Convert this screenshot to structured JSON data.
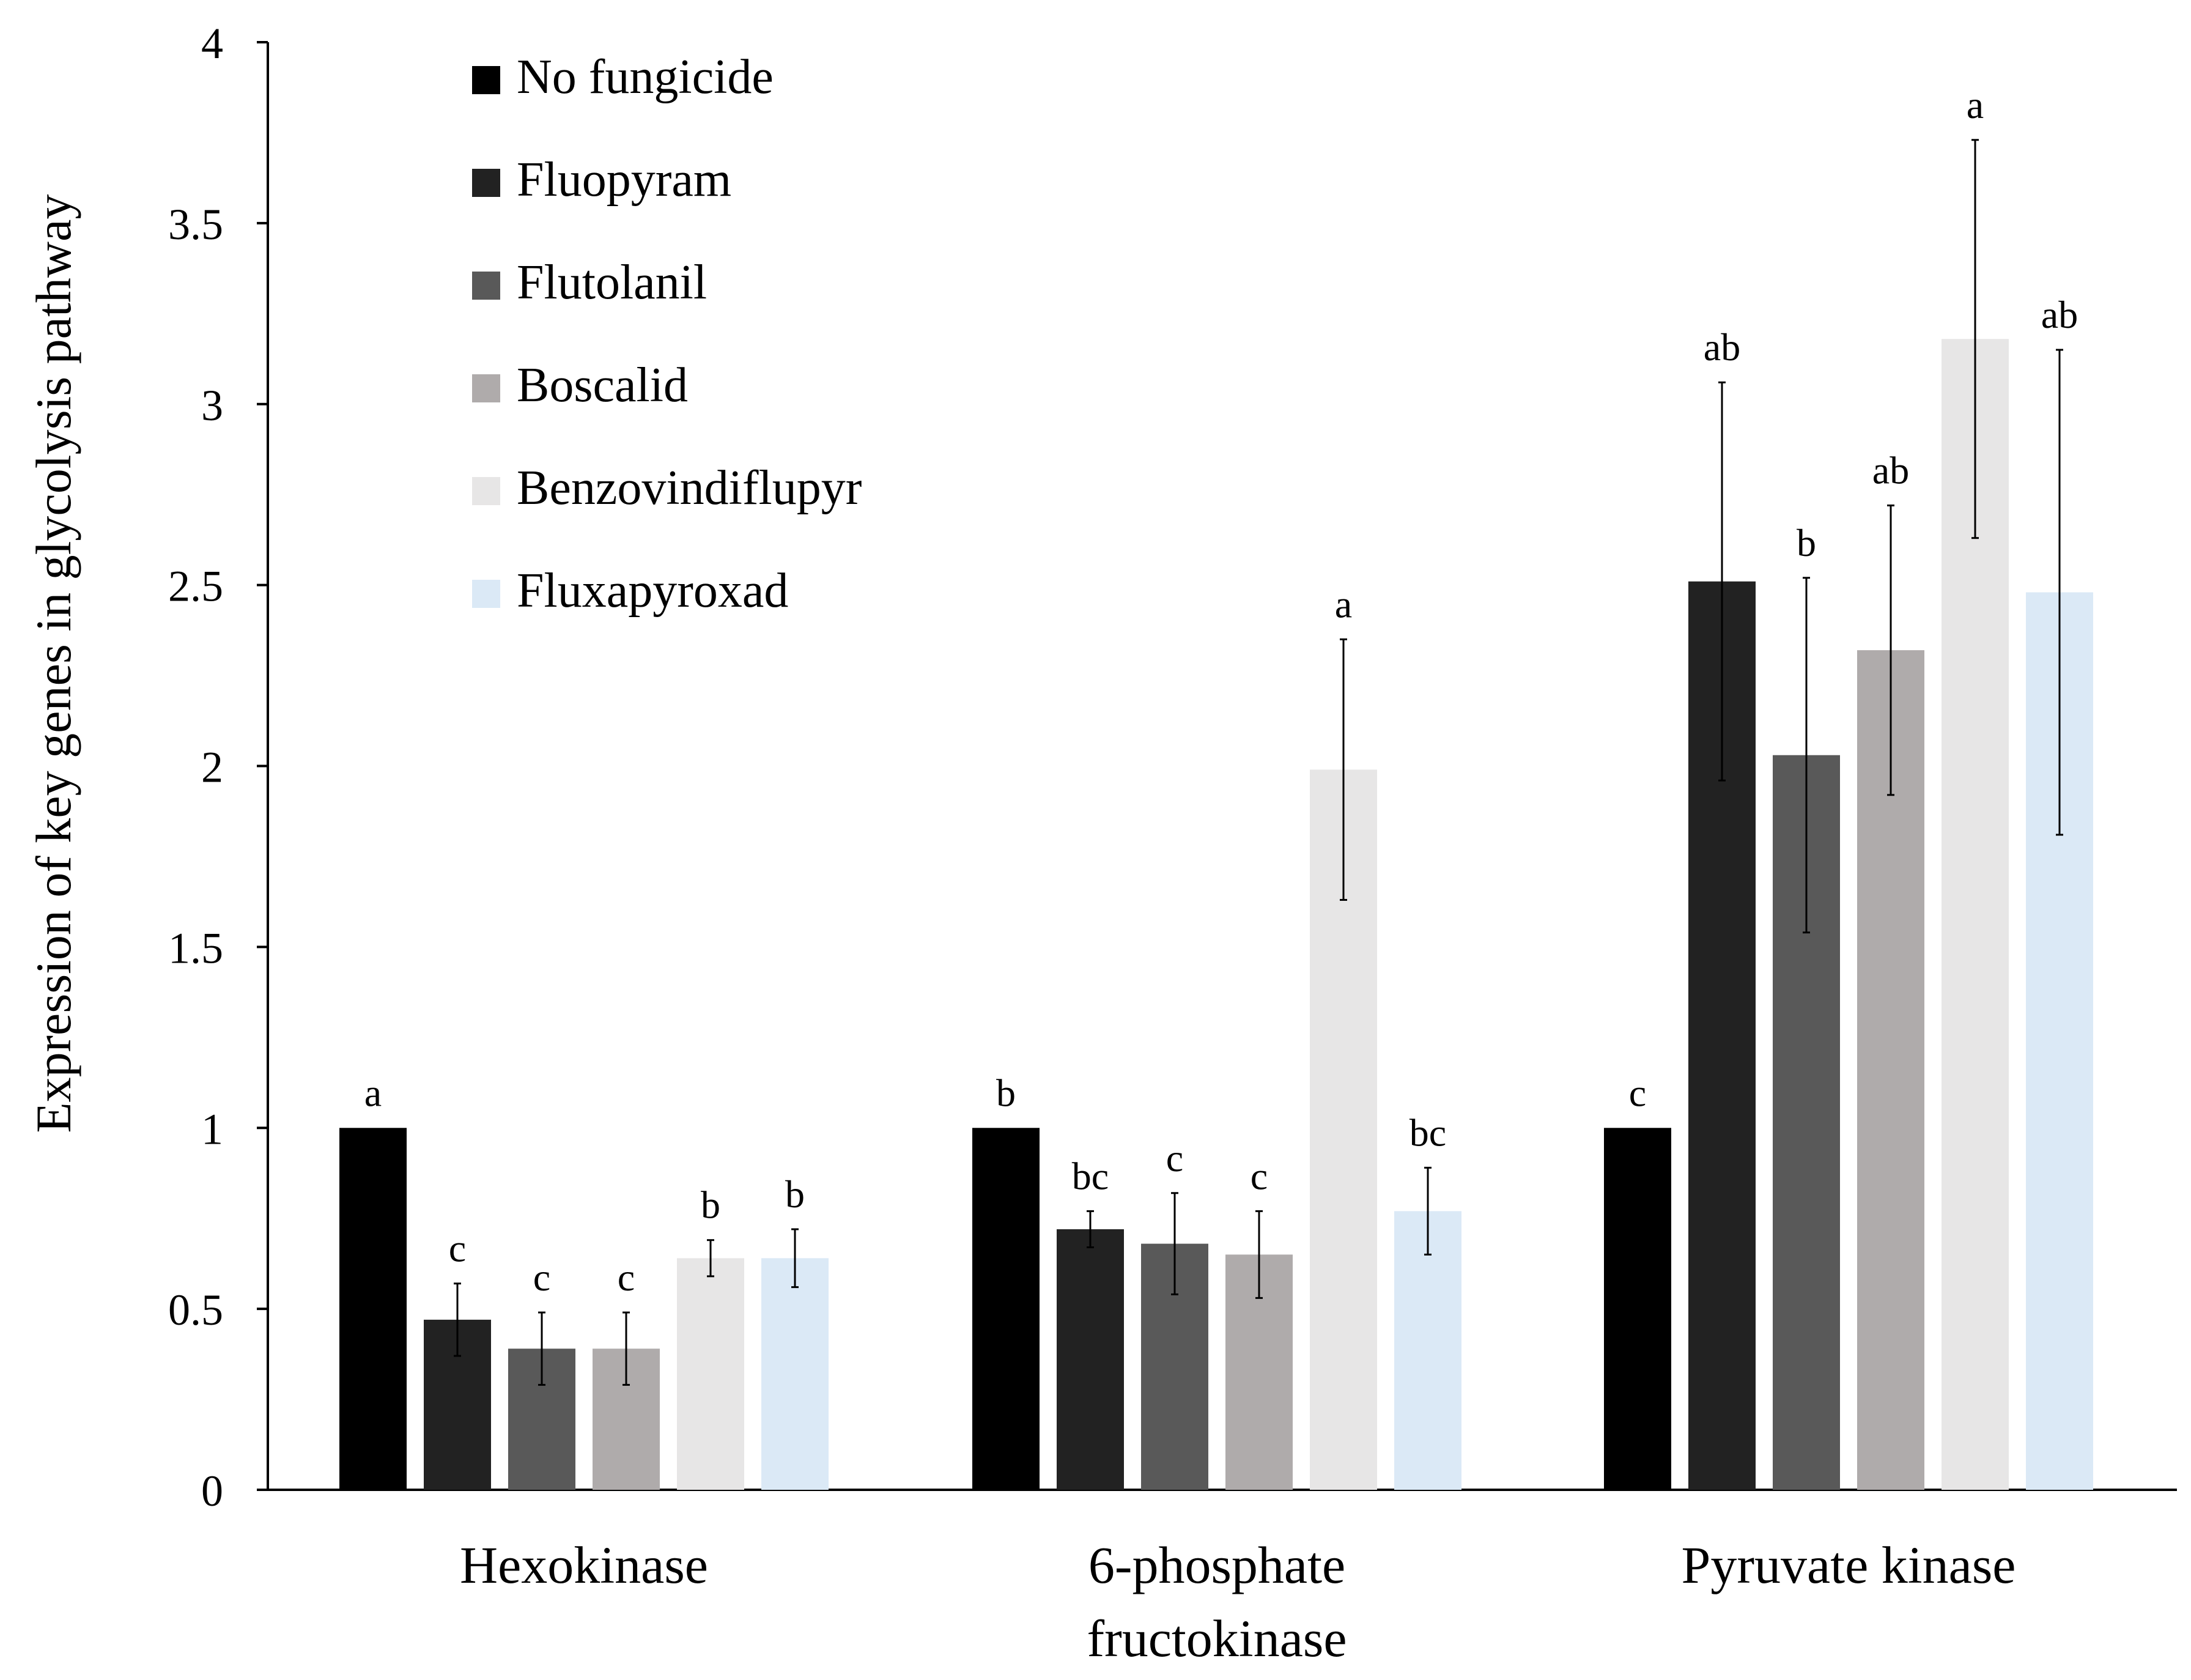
{
  "chart_data": {
    "type": "bar",
    "title": "",
    "xlabel": "",
    "ylabel": "Expression of key genes in glycolysis pathway",
    "ylim": [
      0,
      4
    ],
    "yticks": [
      "0",
      "0.5",
      "1",
      "1.5",
      "2",
      "2.5",
      "3",
      "3.5",
      "4"
    ],
    "ytick_values": [
      0,
      0.5,
      1,
      1.5,
      2,
      2.5,
      3,
      3.5,
      4
    ],
    "grid": false,
    "legend_position": "top-left",
    "categories": [
      [
        "Hexokinase"
      ],
      [
        "6-phosphate",
        "fructokinase"
      ],
      [
        "Pyruvate kinase"
      ]
    ],
    "series": [
      {
        "name": "No fungicide",
        "color": "#000000",
        "values": [
          1.0,
          1.0,
          1.0
        ],
        "errors": [
          0.0,
          0.0,
          0.0
        ],
        "labels": [
          "a",
          "b",
          "c"
        ]
      },
      {
        "name": "Fluopyram",
        "color": "#222222",
        "values": [
          0.47,
          0.72,
          2.51
        ],
        "errors": [
          0.1,
          0.05,
          0.55
        ],
        "labels": [
          "c",
          "bc",
          "ab"
        ]
      },
      {
        "name": "Flutolanil",
        "color": "#595959",
        "values": [
          0.39,
          0.68,
          2.03
        ],
        "errors": [
          0.1,
          0.14,
          0.49
        ],
        "labels": [
          "c",
          "c",
          "b"
        ]
      },
      {
        "name": "Boscalid",
        "color": "#afabab",
        "values": [
          0.39,
          0.65,
          2.32
        ],
        "errors": [
          0.1,
          0.12,
          0.4
        ],
        "labels": [
          "c",
          "c",
          "ab"
        ]
      },
      {
        "name": "Benzovindiflupyr",
        "color": "#e7e6e6",
        "values": [
          0.64,
          1.99,
          3.18
        ],
        "errors": [
          0.05,
          0.36,
          0.55
        ],
        "labels": [
          "b",
          "a",
          "a"
        ]
      },
      {
        "name": "Fluxapyroxad",
        "color": "#dbe9f6",
        "values": [
          0.64,
          0.77,
          2.48
        ],
        "errors": [
          0.08,
          0.12,
          0.67
        ],
        "labels": [
          "b",
          "bc",
          "ab"
        ]
      }
    ]
  }
}
